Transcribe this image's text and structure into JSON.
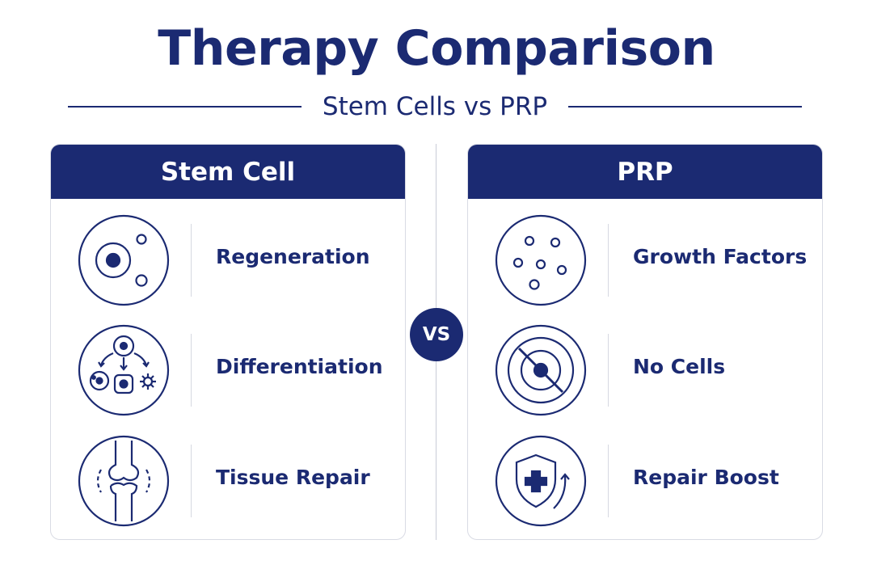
{
  "title": "Therapy Comparison",
  "subtitle": "Stem Cells vs PRP",
  "vs_label": "VS",
  "colors": {
    "primary": "#1b2a72",
    "background": "#ffffff",
    "border": "#d9dbe4"
  },
  "left_panel": {
    "header": "Stem Cell",
    "items": [
      {
        "label": "Regeneration",
        "icon": "stem-cell-icon"
      },
      {
        "label": "Differentiation",
        "icon": "differentiation-icon"
      },
      {
        "label": "Tissue Repair",
        "icon": "knee-joint-icon"
      }
    ]
  },
  "right_panel": {
    "header": "PRP",
    "items": [
      {
        "label": "Growth Factors",
        "icon": "growth-factors-icon"
      },
      {
        "label": "No Cells",
        "icon": "no-cells-icon"
      },
      {
        "label": "Repair Boost",
        "icon": "shield-plus-icon"
      }
    ]
  }
}
